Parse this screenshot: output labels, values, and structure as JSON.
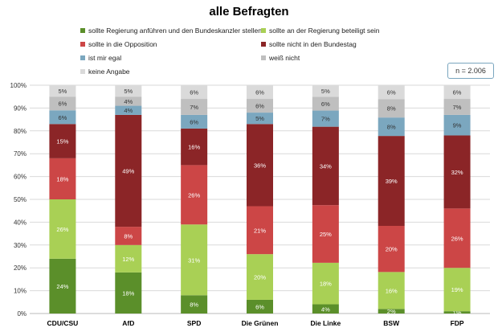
{
  "chart_data": {
    "type": "bar",
    "stacked": true,
    "title": "alle Befragten",
    "annotation": "n = 2.006",
    "categories": [
      "CDU/CSU",
      "AfD",
      "SPD",
      "Die Grünen",
      "Die Linke",
      "BSW",
      "FDP"
    ],
    "yticks": [
      "0%",
      "10%",
      "20%",
      "30%",
      "40%",
      "50%",
      "60%",
      "70%",
      "80%",
      "90%",
      "100%"
    ],
    "ylim": [
      0,
      100
    ],
    "series": [
      {
        "name": "sollte Regierung anführen und den Bundeskanzler stellen",
        "color": "#5b8f2a",
        "values": [
          24,
          18,
          8,
          6,
          4,
          2,
          1
        ]
      },
      {
        "name": "sollte an der Regierung beteiligt sein",
        "color": "#a9d055",
        "values": [
          26,
          12,
          31,
          20,
          18,
          16,
          19
        ]
      },
      {
        "name": "sollte in die Opposition",
        "color": "#cc4646",
        "values": [
          18,
          8,
          26,
          21,
          25,
          20,
          26
        ]
      },
      {
        "name": "sollte nicht in den Bundestag",
        "color": "#8b2527",
        "values": [
          15,
          49,
          16,
          36,
          34,
          39,
          32
        ]
      },
      {
        "name": "ist mir egal",
        "color": "#7ba7bf",
        "values": [
          6,
          4,
          6,
          5,
          7,
          8,
          9
        ]
      },
      {
        "name": "weiß nicht",
        "color": "#bfbfbf",
        "values": [
          6,
          4,
          7,
          6,
          6,
          8,
          7
        ]
      },
      {
        "name": "keine Angabe",
        "color": "#dadada",
        "values": [
          5,
          5,
          6,
          6,
          5,
          6,
          6
        ]
      }
    ]
  }
}
